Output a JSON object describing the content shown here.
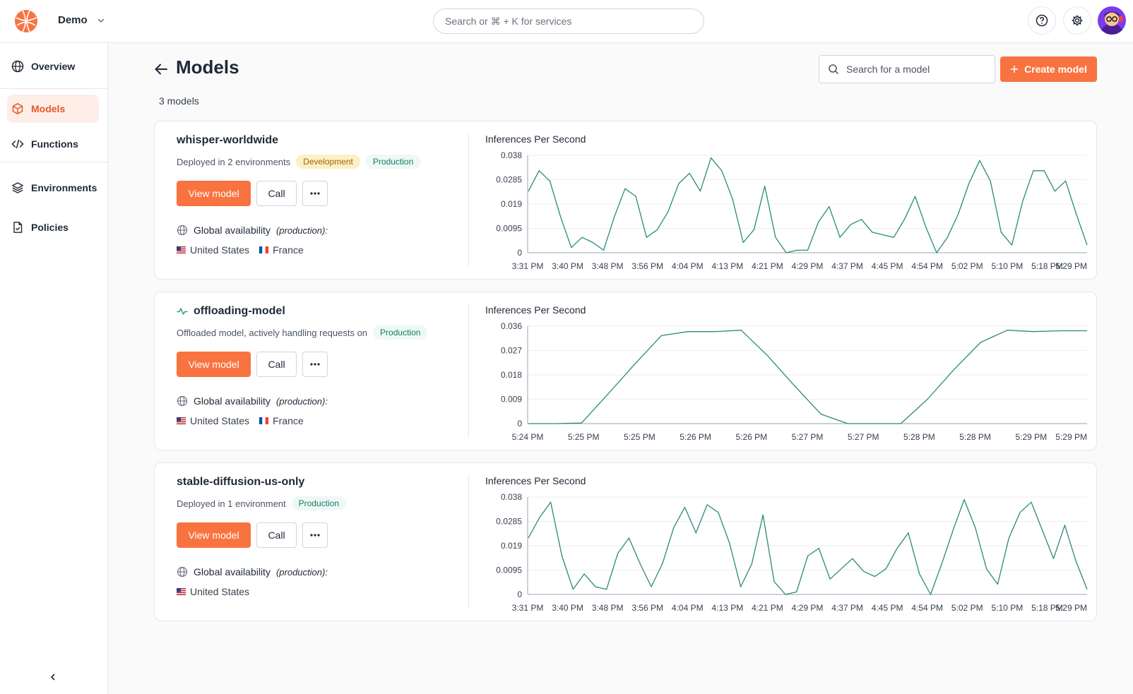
{
  "header": {
    "workspace": "Demo",
    "search_placeholder": "Search or ⌘ + K for services"
  },
  "sidebar": {
    "items": [
      {
        "label": "Overview",
        "icon": "globe-icon"
      },
      {
        "label": "Models",
        "icon": "cube-icon",
        "active": true
      },
      {
        "label": "Functions",
        "icon": "code-icon"
      },
      {
        "label": "Environments",
        "icon": "layers-icon"
      },
      {
        "label": "Policies",
        "icon": "document-check-icon"
      }
    ]
  },
  "page": {
    "title": "Models",
    "search_placeholder": "Search for a model",
    "create_label": "Create model",
    "count": "3 models"
  },
  "colors": {
    "accent": "#f97340",
    "chart_line": "#2a8a78"
  },
  "models": [
    {
      "name": "whisper-worldwide",
      "description": "Deployed in 2 environments",
      "badges": [
        "Development",
        "Production"
      ],
      "view_label": "View model",
      "call_label": "Call",
      "availability_label": "Global availability",
      "availability_env": "(production):",
      "regions": [
        "United States",
        "France"
      ]
    },
    {
      "name": "offloading-model",
      "description": "Offloaded model, actively handling requests on",
      "badges": [
        "Production"
      ],
      "view_label": "View model",
      "call_label": "Call",
      "availability_label": "Global availability",
      "availability_env": "(production):",
      "regions": [
        "United States",
        "France"
      ]
    },
    {
      "name": "stable-diffusion-us-only",
      "description": "Deployed in 1 environment",
      "badges": [
        "Production"
      ],
      "view_label": "View model",
      "call_label": "Call",
      "availability_label": "Global availability",
      "availability_env": "(production):",
      "regions": [
        "United States"
      ]
    }
  ],
  "chart_data": [
    {
      "type": "line",
      "title": "Inferences Per Second",
      "y_ticks": [
        "0",
        "0.0095",
        "0.019",
        "0.0285",
        "0.038"
      ],
      "ylim": [
        0,
        0.038
      ],
      "x_ticks": [
        "3:31 PM",
        "3:40 PM",
        "3:48 PM",
        "3:56 PM",
        "4:04 PM",
        "4:13 PM",
        "4:21 PM",
        "4:29 PM",
        "4:37 PM",
        "4:45 PM",
        "4:54 PM",
        "5:02 PM",
        "5:10 PM",
        "5:18 PM",
        "5:29 PM"
      ],
      "series": [
        {
          "values": [
            0.024,
            0.032,
            0.028,
            0.014,
            0.002,
            0.006,
            0.004,
            0.001,
            0.014,
            0.025,
            0.022,
            0.006,
            0.009,
            0.016,
            0.027,
            0.031,
            0.024,
            0.037,
            0.032,
            0.021,
            0.004,
            0.009,
            0.026,
            0.006,
            0.0,
            0.001,
            0.001,
            0.012,
            0.018,
            0.006,
            0.011,
            0.013,
            0.008,
            0.007,
            0.006,
            0.013,
            0.022,
            0.01,
            0.0,
            0.006,
            0.015,
            0.027,
            0.036,
            0.028,
            0.008,
            0.003,
            0.02,
            0.032,
            0.032,
            0.024,
            0.028,
            0.015,
            0.003
          ]
        }
      ]
    },
    {
      "type": "line",
      "title": "Inferences Per Second",
      "y_ticks": [
        "0",
        "0.009",
        "0.018",
        "0.027",
        "0.036"
      ],
      "ylim": [
        0,
        0.036
      ],
      "x_ticks": [
        "5:24 PM",
        "5:25 PM",
        "5:25 PM",
        "5:26 PM",
        "5:26 PM",
        "5:27 PM",
        "5:27 PM",
        "5:28 PM",
        "5:28 PM",
        "5:29 PM",
        "5:29 PM"
      ],
      "series": [
        {
          "values": [
            0.0,
            0.0,
            0.0002,
            0.011,
            0.022,
            0.0325,
            0.034,
            0.034,
            0.0345,
            0.025,
            0.014,
            0.0035,
            0.0,
            0.0,
            0.0,
            0.009,
            0.02,
            0.03,
            0.0345,
            0.034,
            0.0343,
            0.0343
          ]
        }
      ]
    },
    {
      "type": "line",
      "title": "Inferences Per Second",
      "y_ticks": [
        "0",
        "0.0095",
        "0.019",
        "0.0285",
        "0.038"
      ],
      "ylim": [
        0,
        0.038
      ],
      "x_ticks": [
        "3:31 PM",
        "3:40 PM",
        "3:48 PM",
        "3:56 PM",
        "4:04 PM",
        "4:13 PM",
        "4:21 PM",
        "4:29 PM",
        "4:37 PM",
        "4:45 PM",
        "4:54 PM",
        "5:02 PM",
        "5:10 PM",
        "5:18 PM",
        "5:29 PM"
      ],
      "series": [
        {
          "values": [
            0.022,
            0.03,
            0.036,
            0.015,
            0.002,
            0.008,
            0.003,
            0.002,
            0.016,
            0.022,
            0.012,
            0.003,
            0.012,
            0.026,
            0.034,
            0.024,
            0.035,
            0.032,
            0.02,
            0.003,
            0.012,
            0.031,
            0.005,
            0.0,
            0.001,
            0.015,
            0.018,
            0.006,
            0.01,
            0.014,
            0.009,
            0.007,
            0.01,
            0.018,
            0.024,
            0.008,
            0.0,
            0.012,
            0.025,
            0.037,
            0.026,
            0.01,
            0.004,
            0.022,
            0.032,
            0.036,
            0.025,
            0.014,
            0.027,
            0.013,
            0.002
          ]
        }
      ]
    }
  ]
}
